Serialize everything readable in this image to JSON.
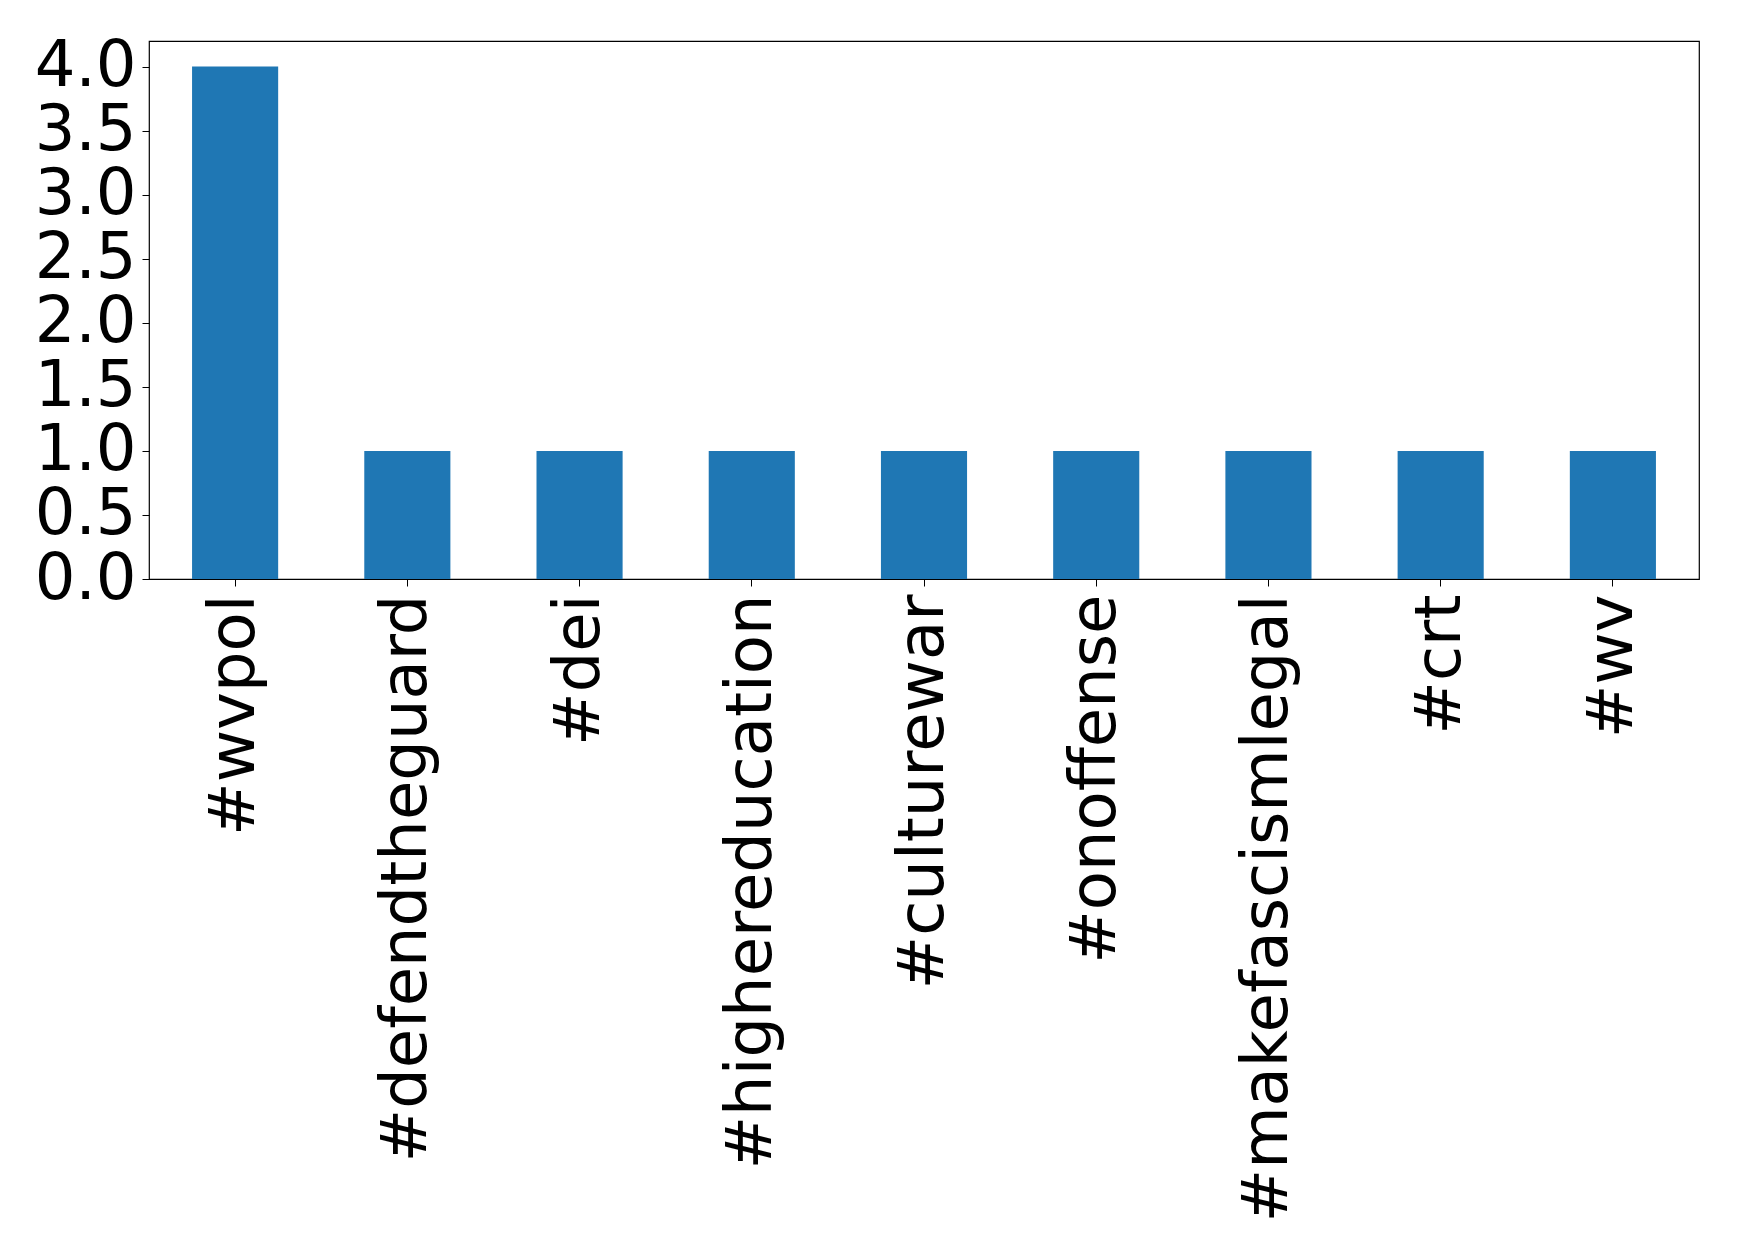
{
  "chart_data": {
    "type": "bar",
    "categories": [
      "#wvpol",
      "#defendtheguard",
      "#dei",
      "#highereducation",
      "#culturewar",
      "#onoffense",
      "#makefascismlegal",
      "#crt",
      "#wv"
    ],
    "values": [
      4,
      1,
      1,
      1,
      1,
      1,
      1,
      1,
      1
    ],
    "color": "#1f77b4",
    "ylim": [
      0,
      4.2
    ],
    "yticks": [
      {
        "value": 0,
        "label": "0.0"
      },
      0.5,
      {
        "value": 1,
        "label": "1.0"
      },
      1.5,
      {
        "value": 2,
        "label": "2.0"
      },
      2.5,
      {
        "value": 3,
        "label": "3.0"
      },
      3.5,
      {
        "value": 4,
        "label": "4.0"
      }
    ],
    "grid": false
  }
}
